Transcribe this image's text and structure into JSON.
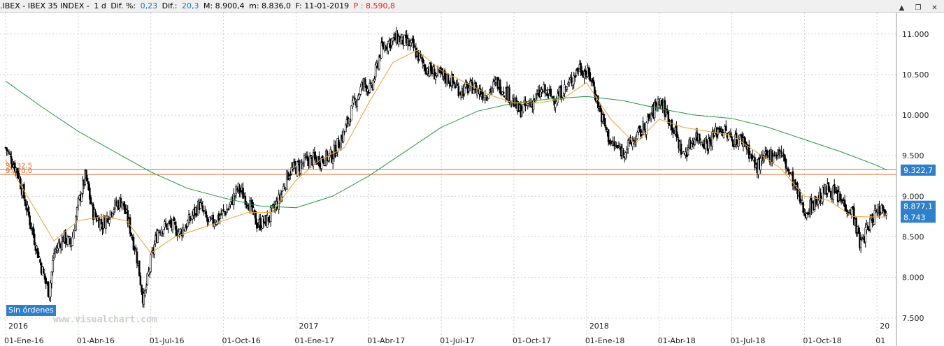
{
  "header": {
    "symbol": ".IBEX - IBEX 35 INDEX -",
    "period": "1 d",
    "dif_pct_label": "Dif. %:",
    "dif_pct_value": "0,23",
    "dif_label": "Dif.:",
    "dif_value": "20,3",
    "max_label": "M: 8.900,4",
    "min_label": "m: 8.836,0",
    "date_label": "F: 11-01-2019",
    "price_label": "P : 8.590,8"
  },
  "window_buttons": {
    "scroll": "▲",
    "restore": "❐",
    "close": "✕"
  },
  "sin_ordenes": "Sin órdenes",
  "watermark": "www.visualchart.com",
  "chart_data": {
    "type": "candlestick",
    "y_ticks": [
      "11.000",
      "10.500",
      "10.000",
      "9.500",
      "9.000",
      "8.500",
      "8.000",
      "7.500"
    ],
    "y_tick_values": [
      11000,
      10500,
      10000,
      9500,
      9000,
      8500,
      8000,
      7500
    ],
    "ylim": [
      7430,
      11230
    ],
    "x_ticks": [
      "01-Ene-16",
      "01-Abr-16",
      "01-Jul-16",
      "01-Oct-16",
      "01-Ene-17",
      "01-Abr-17",
      "01-Jul-17",
      "01-Oct-17",
      "01-Ene-18",
      "01-Abr-18",
      "01-Jul-18",
      "01-Oct-18",
      "01"
    ],
    "year_labels": [
      "2016",
      "2017",
      "2018",
      "20"
    ],
    "x_range_months": [
      0,
      36.6
    ],
    "grid": true,
    "close_path": [
      [
        0,
        9600
      ],
      [
        0.5,
        9300
      ],
      [
        1.0,
        8700
      ],
      [
        1.5,
        8100
      ],
      [
        1.8,
        7800
      ],
      [
        2.0,
        8300
      ],
      [
        2.4,
        8500
      ],
      [
        2.7,
        8400
      ],
      [
        3.0,
        8900
      ],
      [
        3.3,
        9250
      ],
      [
        3.6,
        8800
      ],
      [
        4.0,
        8650
      ],
      [
        4.4,
        8850
      ],
      [
        4.8,
        8950
      ],
      [
        5.1,
        8650
      ],
      [
        5.4,
        8300
      ],
      [
        5.7,
        7700
      ],
      [
        6.0,
        8200
      ],
      [
        6.3,
        8600
      ],
      [
        6.8,
        8650
      ],
      [
        7.2,
        8550
      ],
      [
        7.6,
        8700
      ],
      [
        8.0,
        8900
      ],
      [
        8.4,
        8650
      ],
      [
        8.8,
        8750
      ],
      [
        9.2,
        8850
      ],
      [
        9.6,
        9100
      ],
      [
        10.0,
        8950
      ],
      [
        10.4,
        8650
      ],
      [
        10.8,
        8700
      ],
      [
        11.3,
        8950
      ],
      [
        11.7,
        9300
      ],
      [
        12.0,
        9350
      ],
      [
        12.5,
        9450
      ],
      [
        13.0,
        9450
      ],
      [
        13.5,
        9500
      ],
      [
        14.0,
        9800
      ],
      [
        14.4,
        10150
      ],
      [
        14.8,
        10400
      ],
      [
        15.1,
        10300
      ],
      [
        15.5,
        10800
      ],
      [
        15.8,
        10900
      ],
      [
        16.2,
        10950
      ],
      [
        16.8,
        10850
      ],
      [
        17.3,
        10600
      ],
      [
        17.8,
        10500
      ],
      [
        18.3,
        10450
      ],
      [
        18.8,
        10300
      ],
      [
        19.3,
        10350
      ],
      [
        19.8,
        10250
      ],
      [
        20.3,
        10400
      ],
      [
        20.8,
        10250
      ],
      [
        21.2,
        10050
      ],
      [
        21.7,
        10150
      ],
      [
        22.2,
        10300
      ],
      [
        22.7,
        10200
      ],
      [
        23.2,
        10350
      ],
      [
        23.7,
        10600
      ],
      [
        24.2,
        10450
      ],
      [
        24.6,
        10000
      ],
      [
        25.0,
        9650
      ],
      [
        25.5,
        9550
      ],
      [
        26.0,
        9700
      ],
      [
        26.5,
        9900
      ],
      [
        27.0,
        10200
      ],
      [
        27.5,
        9900
      ],
      [
        28.0,
        9500
      ],
      [
        28.5,
        9750
      ],
      [
        29.0,
        9650
      ],
      [
        29.5,
        9850
      ],
      [
        30.0,
        9700
      ],
      [
        30.5,
        9700
      ],
      [
        31.0,
        9350
      ],
      [
        31.5,
        9500
      ],
      [
        32.0,
        9550
      ],
      [
        32.5,
        9200
      ],
      [
        33.0,
        8800
      ],
      [
        33.5,
        8950
      ],
      [
        34.0,
        9100
      ],
      [
        34.5,
        8950
      ],
      [
        35.0,
        8800
      ],
      [
        35.3,
        8400
      ],
      [
        35.6,
        8600
      ],
      [
        36.0,
        8850
      ],
      [
        36.4,
        8877
      ]
    ],
    "ma_short_path": [
      [
        0,
        9450
      ],
      [
        1.0,
        8950
      ],
      [
        2.0,
        8450
      ],
      [
        3.0,
        8700
      ],
      [
        4.0,
        8750
      ],
      [
        5.0,
        8700
      ],
      [
        6.0,
        8300
      ],
      [
        7.0,
        8500
      ],
      [
        8.0,
        8600
      ],
      [
        9.0,
        8700
      ],
      [
        10.0,
        8800
      ],
      [
        11.0,
        8800
      ],
      [
        12.0,
        9200
      ],
      [
        13.0,
        9450
      ],
      [
        14.0,
        9600
      ],
      [
        15.0,
        10150
      ],
      [
        16.0,
        10650
      ],
      [
        17.0,
        10800
      ],
      [
        18.0,
        10550
      ],
      [
        19.0,
        10400
      ],
      [
        20.0,
        10250
      ],
      [
        21.0,
        10150
      ],
      [
        22.0,
        10150
      ],
      [
        23.0,
        10200
      ],
      [
        24.0,
        10400
      ],
      [
        25.0,
        9950
      ],
      [
        26.0,
        9650
      ],
      [
        27.0,
        9950
      ],
      [
        28.0,
        9850
      ],
      [
        29.0,
        9800
      ],
      [
        30.0,
        9750
      ],
      [
        31.0,
        9550
      ],
      [
        32.0,
        9350
      ],
      [
        33.0,
        9000
      ],
      [
        34.0,
        8950
      ],
      [
        35.0,
        8750
      ],
      [
        36.4,
        8743
      ]
    ],
    "ma_long_path": [
      [
        0,
        10420
      ],
      [
        1.5,
        10100
      ],
      [
        3.0,
        9800
      ],
      [
        4.5,
        9550
      ],
      [
        6.0,
        9300
      ],
      [
        7.5,
        9100
      ],
      [
        9.0,
        8980
      ],
      [
        10.5,
        8880
      ],
      [
        12.0,
        8860
      ],
      [
        13.5,
        9000
      ],
      [
        15.0,
        9250
      ],
      [
        16.5,
        9550
      ],
      [
        18.0,
        9850
      ],
      [
        19.5,
        10050
      ],
      [
        21.0,
        10150
      ],
      [
        22.5,
        10200
      ],
      [
        24.0,
        10230
      ],
      [
        25.5,
        10180
      ],
      [
        27.0,
        10080
      ],
      [
        28.5,
        10000
      ],
      [
        30.0,
        9960
      ],
      [
        31.5,
        9850
      ],
      [
        33.0,
        9700
      ],
      [
        34.5,
        9550
      ],
      [
        36.0,
        9380
      ],
      [
        36.4,
        9322.7
      ]
    ],
    "horizontal_lines": [
      {
        "value": 9332.5,
        "label": "9.332,5"
      },
      {
        "value": 9270,
        "label": "9.270,0"
      }
    ],
    "price_badges": [
      {
        "value": 9322.7,
        "label": "9.322,7"
      },
      {
        "value": 8877.1,
        "label": "8.877,1"
      },
      {
        "value": 8743,
        "label": "8.743"
      }
    ],
    "colors": {
      "candles": "#000000",
      "ma_short": "#f0a030",
      "ma_long": "#1f9a3a",
      "hlines": "#e36a2e",
      "badge": "#2f7fc9",
      "grid": "#cfcfcf"
    }
  }
}
